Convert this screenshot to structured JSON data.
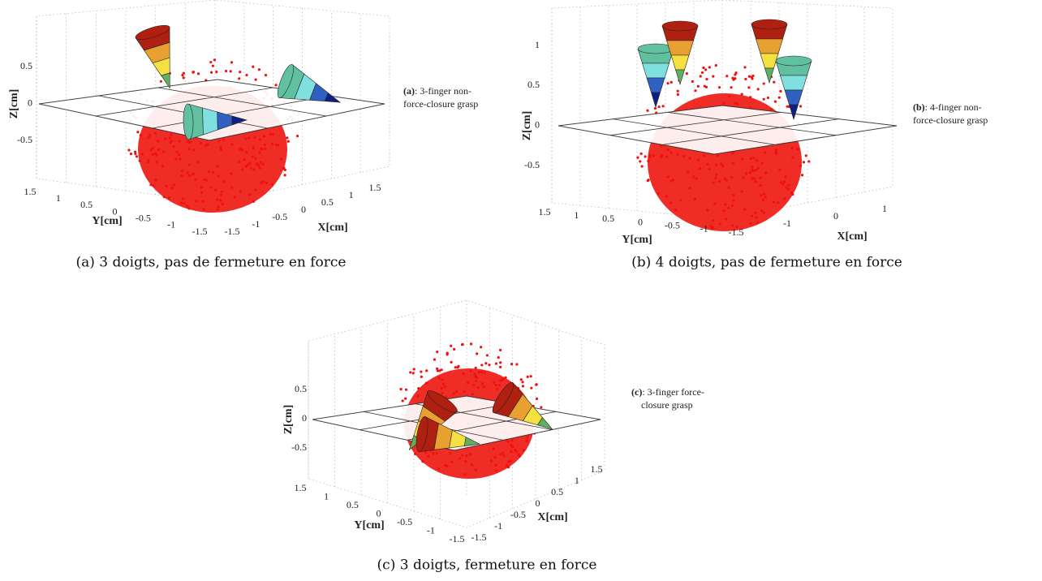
{
  "figures": [
    {
      "annotation_label": "(a)",
      "annotation_lines": [
        ": 3-finger non-",
        "force-closure grasp"
      ],
      "z_label": "Z[cm]",
      "y_label": "Y[cm]",
      "x_label": "X[cm]",
      "z_ticks": [
        "0.5",
        "0",
        "-0.5"
      ],
      "y_ticks": [
        "1.5",
        "1",
        "0.5",
        "0",
        "-0.5",
        "-1",
        "-1.5"
      ],
      "x_ticks": [
        "-1.5",
        "-1",
        "-0.5",
        "0",
        "0.5",
        "1",
        "1.5"
      ],
      "caption": "(a) 3 doigts, pas de fermeture en force"
    },
    {
      "annotation_label": "(b)",
      "annotation_lines": [
        ": 4-finger non-",
        "force-closure grasp"
      ],
      "z_label": "Z[cm]",
      "y_label": "Y[cm]",
      "x_label": "X[cm]",
      "z_ticks": [
        "1",
        "0.5",
        "0",
        "-0.5"
      ],
      "y_ticks": [
        "1.5",
        "1",
        "0.5",
        "0",
        "-0.5",
        "-1",
        "-1.5"
      ],
      "x_ticks": [
        "-1",
        "0",
        "1"
      ],
      "caption": "(b) 4 doigts, pas de fermeture en force"
    },
    {
      "annotation_label": "(c)",
      "annotation_lines": [
        ": 3-finger force-",
        "closure grasp"
      ],
      "z_label": "Z[cm]",
      "y_label": "Y[cm]",
      "x_label": "X[cm]",
      "z_ticks": [
        "0.5",
        "0",
        "-0.5"
      ],
      "y_ticks": [
        "1.5",
        "1",
        "0.5",
        "0",
        "-0.5",
        "-1",
        "-1.5"
      ],
      "x_ticks": [
        "-1.5",
        "-1",
        "-0.5",
        "0",
        "0.5",
        "1",
        "1.5"
      ],
      "caption": "(c) 3 doigts, fermeture en force"
    }
  ]
}
